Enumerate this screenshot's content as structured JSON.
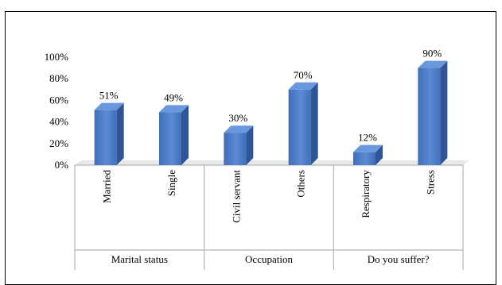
{
  "chart_data": {
    "type": "bar",
    "title": "",
    "xlabel": "",
    "ylabel": "",
    "ylim": [
      0,
      100
    ],
    "yticks": [
      0,
      20,
      40,
      60,
      80,
      100
    ],
    "ytick_labels": [
      "0%",
      "20%",
      "40%",
      "60%",
      "80%",
      "100%"
    ],
    "grid": false,
    "legend": "none",
    "groups": [
      {
        "name": "Marital status",
        "categories": [
          "Married",
          "Single"
        ]
      },
      {
        "name": "Occupation",
        "categories": [
          "Civil servant",
          "Others"
        ]
      },
      {
        "name": "Do you suffer?",
        "categories": [
          "Respiratory",
          "Stress"
        ]
      }
    ],
    "categories": [
      "Married",
      "Single",
      "Civil servant",
      "Others",
      "Respiratory",
      "Stress"
    ],
    "values": [
      51,
      49,
      30,
      70,
      12,
      90
    ],
    "value_labels": [
      "51%",
      "49%",
      "30%",
      "70%",
      "12%",
      "90%"
    ],
    "colors": {
      "bar_front": "#4a7bc8",
      "bar_side": "#2f5597",
      "bar_top": "#6a98dc",
      "axis": "#a6a6a6",
      "floor_shadow": "#d9d9d9"
    }
  }
}
